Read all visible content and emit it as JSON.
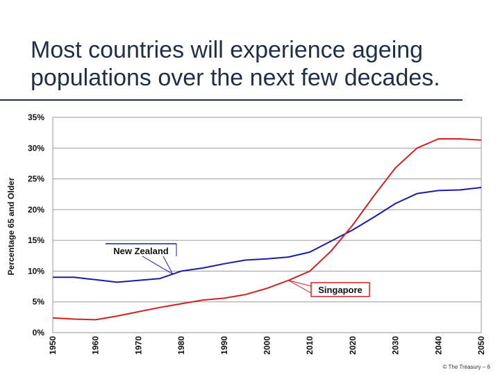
{
  "slide": {
    "title_line1": "Most countries will experience ageing",
    "title_line2": "populations over the next few decades.",
    "footer": "© The Treasury – 6"
  },
  "colors": {
    "title": "#1f2f45",
    "new_zealand": "#1a1aa6",
    "singapore": "#d42020",
    "grid": "#9a9a9a"
  },
  "chart_data": {
    "type": "line",
    "title": "",
    "xlabel": "",
    "ylabel": "Percentage 65 and Older",
    "xlim": [
      1950,
      2050
    ],
    "ylim": [
      0,
      35
    ],
    "x_ticks": [
      "1950",
      "1960",
      "1970",
      "1980",
      "1990",
      "2000",
      "2010",
      "2020",
      "2030",
      "2040",
      "2050"
    ],
    "y_ticks": [
      "0%",
      "5%",
      "10%",
      "15%",
      "20%",
      "25%",
      "30%",
      "35%"
    ],
    "grid": "horizontal",
    "x": [
      1950,
      1955,
      1960,
      1965,
      1970,
      1975,
      1980,
      1985,
      1990,
      1995,
      2000,
      2005,
      2010,
      2015,
      2020,
      2025,
      2030,
      2035,
      2040,
      2045,
      2050
    ],
    "series": [
      {
        "name": "New Zealand",
        "color": "#1a1aa6",
        "values": [
          9.0,
          9.0,
          8.6,
          8.2,
          8.5,
          8.8,
          10.0,
          10.5,
          11.2,
          11.8,
          12.0,
          12.3,
          13.1,
          14.9,
          16.7,
          18.8,
          21.0,
          22.6,
          23.1,
          23.2,
          23.6
        ]
      },
      {
        "name": "Singapore",
        "color": "#d42020",
        "values": [
          2.4,
          2.2,
          2.1,
          2.7,
          3.4,
          4.1,
          4.7,
          5.3,
          5.6,
          6.2,
          7.2,
          8.5,
          10.0,
          13.3,
          17.5,
          22.3,
          26.8,
          30.0,
          31.5,
          31.5,
          31.3
        ]
      }
    ],
    "annotations": [
      {
        "text": "New Zealand",
        "series": "New Zealand",
        "at_x": 1978
      },
      {
        "text": "Singapore",
        "series": "Singapore",
        "at_x": 2005
      }
    ]
  }
}
